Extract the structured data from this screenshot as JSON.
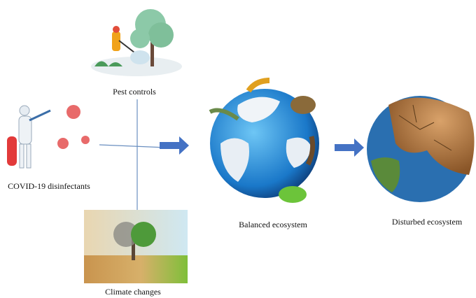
{
  "nodes": [
    {
      "label": "Pest controls"
    },
    {
      "label": "COVID-19 disinfectants"
    },
    {
      "label": "Climate changes"
    },
    {
      "label": "Balanced ecosystem"
    },
    {
      "label": "Disturbed ecosystem"
    }
  ]
}
